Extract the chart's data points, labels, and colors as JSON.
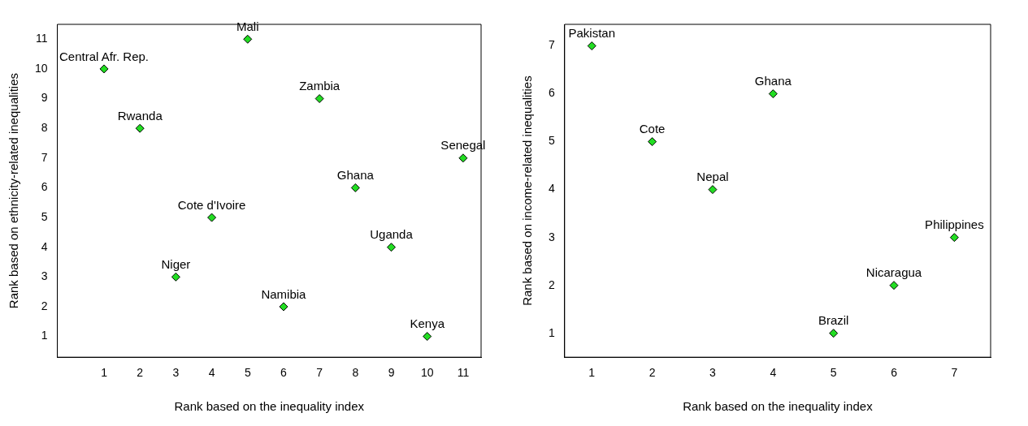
{
  "chart_data": [
    {
      "type": "scatter",
      "xlabel": "Rank based on the inequality index",
      "ylabel": "Rank based on ethnicity-related inequalities",
      "x": [
        1,
        2,
        3,
        4,
        5,
        6,
        7,
        8,
        9,
        10,
        11
      ],
      "series": [
        {
          "color": "#22dd22",
          "values": [
            10,
            8,
            3,
            5,
            11,
            2,
            9,
            6,
            4,
            1,
            7
          ]
        }
      ],
      "annotations": [
        {
          "text": "Central Afr. Rep.",
          "x": 1,
          "y": 10
        },
        {
          "text": "Rwanda",
          "x": 2,
          "y": 8
        },
        {
          "text": "Niger",
          "x": 3,
          "y": 3
        },
        {
          "text": "Cote d'Ivoire",
          "x": 4,
          "y": 5
        },
        {
          "text": "Mali",
          "x": 5,
          "y": 11
        },
        {
          "text": "Namibia",
          "x": 6,
          "y": 2
        },
        {
          "text": "Zambia",
          "x": 7,
          "y": 9
        },
        {
          "text": "Ghana",
          "x": 8,
          "y": 6
        },
        {
          "text": "Uganda",
          "x": 9,
          "y": 4
        },
        {
          "text": "Kenya",
          "x": 10,
          "y": 1
        },
        {
          "text": "Senegal",
          "x": 11,
          "y": 7
        }
      ],
      "xlim": [
        -0.3,
        11.5
      ],
      "ylim": [
        0.3,
        11.5
      ],
      "xticks": [
        1,
        2,
        3,
        4,
        5,
        6,
        7,
        8,
        9,
        10,
        11
      ],
      "yticks": [
        1,
        2,
        3,
        4,
        5,
        6,
        7,
        8,
        9,
        10,
        11
      ],
      "marker": "diamond",
      "grid": false,
      "legend": false
    },
    {
      "type": "scatter",
      "xlabel": "Rank based on the inequality index",
      "ylabel": "Rank based on income-related inequalities",
      "x": [
        1,
        2,
        3,
        4,
        5,
        6,
        7
      ],
      "series": [
        {
          "color": "#22dd22",
          "values": [
            7,
            5,
            4,
            6,
            1,
            2,
            3
          ]
        }
      ],
      "annotations": [
        {
          "text": "Pakistan",
          "x": 1,
          "y": 7
        },
        {
          "text": "Cote",
          "x": 2,
          "y": 5
        },
        {
          "text": "Nepal",
          "x": 3,
          "y": 4
        },
        {
          "text": "Ghana",
          "x": 4,
          "y": 6
        },
        {
          "text": "Brazil",
          "x": 5,
          "y": 1
        },
        {
          "text": "Nicaragua",
          "x": 6,
          "y": 2
        },
        {
          "text": "Philippines",
          "x": 7,
          "y": 3
        }
      ],
      "xlim": [
        0.55,
        7.6
      ],
      "ylim": [
        0.5,
        7.45
      ],
      "xticks": [
        1,
        2,
        3,
        4,
        5,
        6,
        7
      ],
      "yticks": [
        1,
        2,
        3,
        4,
        5,
        6,
        7
      ],
      "marker": "diamond",
      "grid": false,
      "legend": false
    }
  ]
}
